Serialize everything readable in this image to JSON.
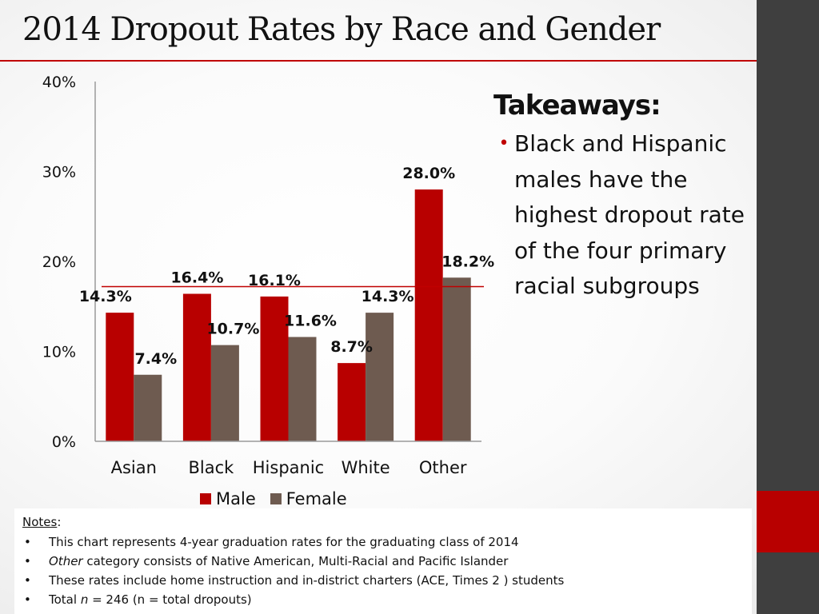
{
  "title": "2014 Dropout Rates by Race and Gender",
  "chart_data": {
    "type": "bar",
    "title": "2014 Dropout Rates by Race and Gender",
    "categories": [
      "Asian",
      "Black",
      "Hispanic",
      "White",
      "Other"
    ],
    "series": [
      {
        "name": "Male",
        "color": "#b80000",
        "values": [
          14.3,
          16.4,
          16.1,
          8.7,
          28.0
        ]
      },
      {
        "name": "Female",
        "color": "#6e5b50",
        "values": [
          7.4,
          10.7,
          11.6,
          14.3,
          18.2
        ]
      }
    ],
    "data_labels": {
      "Male": [
        "14.3%",
        "16.4%",
        "16.1%",
        "8.7%",
        "28.0%"
      ],
      "Female": [
        "7.4%",
        "10.7%",
        "11.6%",
        "14.3%",
        "18.2%"
      ]
    },
    "ylim": [
      0,
      40
    ],
    "yticks": [
      0,
      10,
      20,
      30,
      40
    ],
    "ytick_labels": [
      "0%",
      "10%",
      "20%",
      "30%",
      "40%"
    ],
    "reference_line": {
      "value": 17.2,
      "color": "#c00000"
    },
    "legend": {
      "position": "bottom",
      "entries": [
        "Male",
        "Female"
      ]
    },
    "xlabel": "",
    "ylabel": "",
    "grid": false
  },
  "takeaways": {
    "heading": "Takeaways:",
    "bullets": [
      "Black and Hispanic males have the highest dropout rate of the four primary racial subgroups"
    ]
  },
  "notes": {
    "heading": "Notes",
    "items": [
      {
        "pre": "This chart represents  4-year graduation rates for the graduating class of 2014",
        "em": "",
        "post": ""
      },
      {
        "pre": "",
        "em": "Other",
        "post": " category consists of Native American, Multi-Racial and Pacific Islander"
      },
      {
        "pre": "These rates include home instruction and in-district charters (ACE, Times 2 ) students",
        "em": "",
        "post": ""
      },
      {
        "pre": "Total ",
        "em": "n",
        "post": " = 246 (n = total dropouts)"
      }
    ]
  },
  "colors": {
    "accent": "#c00000",
    "side_bar": "#3f3f3f",
    "male": "#b80000",
    "female": "#6e5b50"
  }
}
